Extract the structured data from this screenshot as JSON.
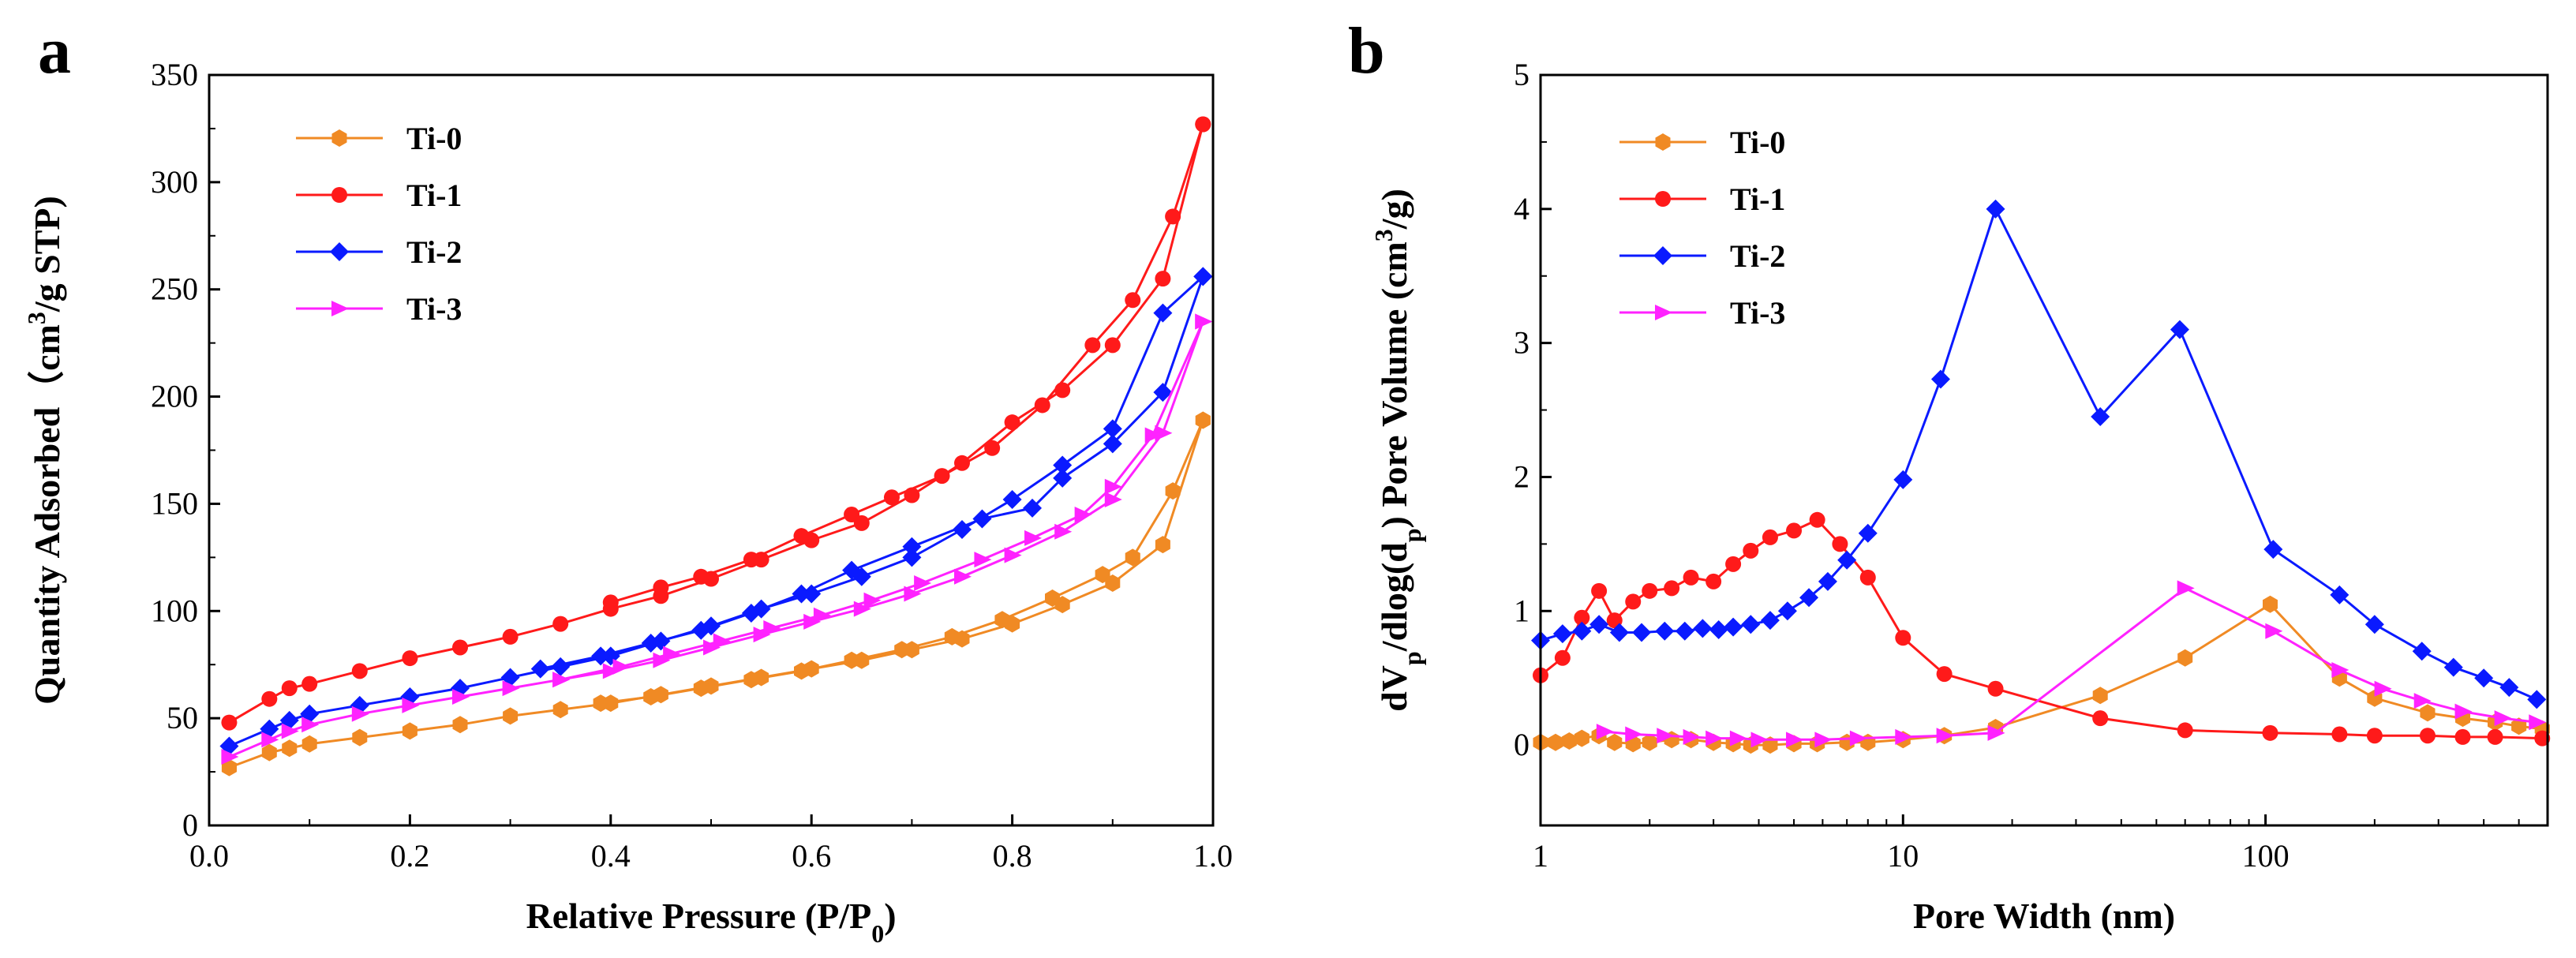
{
  "chart_data": [
    {
      "panel": "a",
      "type": "line",
      "xlabel": "Relative Pressure (P/P",
      "xlabel_sub": "0",
      "xlabel_end": ")",
      "ylabel": "Quantity Adsorbed（cm",
      "ylabel_sup": "3",
      "ylabel_end": "/g STP)",
      "xlim": [
        0.0,
        1.0
      ],
      "ylim": [
        0,
        350
      ],
      "xticks": [
        "0.0",
        "0.2",
        "0.4",
        "0.6",
        "0.8",
        "1.0"
      ],
      "yticks": [
        "0",
        "50",
        "100",
        "150",
        "200",
        "250",
        "300",
        "350"
      ],
      "legend_position": "top-left",
      "series": [
        {
          "name": "Ti-0",
          "color": "#f08a24",
          "marker": "hexagon",
          "adsorption": [
            [
              0.02,
              27
            ],
            [
              0.06,
              34
            ],
            [
              0.08,
              36
            ],
            [
              0.1,
              38
            ],
            [
              0.15,
              41
            ],
            [
              0.2,
              44
            ],
            [
              0.25,
              47
            ],
            [
              0.3,
              51
            ],
            [
              0.35,
              54
            ],
            [
              0.4,
              57
            ],
            [
              0.45,
              61
            ],
            [
              0.5,
              65
            ],
            [
              0.55,
              69
            ],
            [
              0.6,
              73
            ],
            [
              0.65,
              77
            ],
            [
              0.7,
              82
            ],
            [
              0.75,
              87
            ],
            [
              0.8,
              94
            ],
            [
              0.85,
              103
            ],
            [
              0.9,
              113
            ],
            [
              0.95,
              131
            ],
            [
              0.99,
              189
            ]
          ],
          "desorption": [
            [
              0.99,
              189
            ],
            [
              0.96,
              156
            ],
            [
              0.92,
              125
            ],
            [
              0.89,
              117
            ],
            [
              0.84,
              106
            ],
            [
              0.79,
              96
            ],
            [
              0.74,
              88
            ],
            [
              0.69,
              82
            ],
            [
              0.64,
              77
            ],
            [
              0.59,
              72
            ],
            [
              0.54,
              68
            ],
            [
              0.49,
              64
            ],
            [
              0.44,
              60
            ],
            [
              0.39,
              57
            ]
          ]
        },
        {
          "name": "Ti-1",
          "color": "#ff1a1a",
          "marker": "circle",
          "adsorption": [
            [
              0.02,
              48
            ],
            [
              0.06,
              59
            ],
            [
              0.08,
              64
            ],
            [
              0.1,
              66
            ],
            [
              0.15,
              72
            ],
            [
              0.2,
              78
            ],
            [
              0.25,
              83
            ],
            [
              0.3,
              88
            ],
            [
              0.35,
              94
            ],
            [
              0.4,
              101
            ],
            [
              0.45,
              107
            ],
            [
              0.5,
              115
            ],
            [
              0.55,
              124
            ],
            [
              0.6,
              133
            ],
            [
              0.65,
              141
            ],
            [
              0.7,
              154
            ],
            [
              0.75,
              169
            ],
            [
              0.8,
              188
            ],
            [
              0.85,
              203
            ],
            [
              0.9,
              224
            ],
            [
              0.95,
              255
            ],
            [
              0.99,
              327
            ]
          ],
          "desorption": [
            [
              0.99,
              327
            ],
            [
              0.96,
              284
            ],
            [
              0.92,
              245
            ],
            [
              0.88,
              224
            ],
            [
              0.83,
              196
            ],
            [
              0.78,
              176
            ],
            [
              0.73,
              163
            ],
            [
              0.68,
              153
            ],
            [
              0.64,
              145
            ],
            [
              0.59,
              135
            ],
            [
              0.54,
              124
            ],
            [
              0.49,
              116
            ],
            [
              0.45,
              111
            ],
            [
              0.4,
              104
            ]
          ]
        },
        {
          "name": "Ti-2",
          "color": "#0a1aff",
          "marker": "diamond",
          "adsorption": [
            [
              0.02,
              37
            ],
            [
              0.06,
              45
            ],
            [
              0.08,
              49
            ],
            [
              0.1,
              52
            ],
            [
              0.15,
              56
            ],
            [
              0.2,
              60
            ],
            [
              0.25,
              64
            ],
            [
              0.3,
              69
            ],
            [
              0.35,
              74
            ],
            [
              0.4,
              79
            ],
            [
              0.45,
              86
            ],
            [
              0.5,
              93
            ],
            [
              0.55,
              101
            ],
            [
              0.6,
              108
            ],
            [
              0.65,
              116
            ],
            [
              0.7,
              125
            ],
            [
              0.75,
              138
            ],
            [
              0.8,
              152
            ],
            [
              0.85,
              168
            ],
            [
              0.9,
              185
            ],
            [
              0.95,
              239
            ],
            [
              0.99,
              256
            ]
          ],
          "desorption": [
            [
              0.99,
              256
            ],
            [
              0.95,
              202
            ],
            [
              0.9,
              178
            ],
            [
              0.85,
              162
            ],
            [
              0.82,
              148
            ],
            [
              0.77,
              143
            ],
            [
              0.7,
              130
            ],
            [
              0.64,
              119
            ],
            [
              0.59,
              108
            ],
            [
              0.54,
              99
            ],
            [
              0.49,
              91
            ],
            [
              0.44,
              85
            ],
            [
              0.39,
              79
            ],
            [
              0.33,
              73
            ]
          ]
        },
        {
          "name": "Ti-3",
          "color": "#ff22ff",
          "marker": "triangle-right",
          "adsorption": [
            [
              0.02,
              32
            ],
            [
              0.06,
              40
            ],
            [
              0.08,
              44
            ],
            [
              0.1,
              47
            ],
            [
              0.15,
              52
            ],
            [
              0.2,
              56
            ],
            [
              0.25,
              60
            ],
            [
              0.3,
              64
            ],
            [
              0.35,
              68
            ],
            [
              0.4,
              72
            ],
            [
              0.45,
              77
            ],
            [
              0.5,
              83
            ],
            [
              0.55,
              89
            ],
            [
              0.6,
              95
            ],
            [
              0.65,
              101
            ],
            [
              0.7,
              108
            ],
            [
              0.75,
              116
            ],
            [
              0.8,
              126
            ],
            [
              0.85,
              137
            ],
            [
              0.9,
              152
            ],
            [
              0.95,
              183
            ],
            [
              0.99,
              235
            ]
          ],
          "desorption": [
            [
              0.99,
              235
            ],
            [
              0.94,
              182
            ],
            [
              0.9,
              158
            ],
            [
              0.87,
              145
            ],
            [
              0.82,
              134
            ],
            [
              0.77,
              124
            ],
            [
              0.71,
              113
            ],
            [
              0.66,
              105
            ],
            [
              0.61,
              98
            ],
            [
              0.56,
              92
            ],
            [
              0.51,
              86
            ],
            [
              0.46,
              80
            ],
            [
              0.41,
              74
            ],
            [
              0.35,
              68
            ]
          ]
        }
      ]
    },
    {
      "panel": "b",
      "type": "line",
      "xlabel": "Pore Width (nm)",
      "ylabel_parts": [
        "dV",
        "p",
        "/dlog(d",
        "p",
        ") Pore Volume (cm",
        "3",
        "/g)"
      ],
      "xscale": "log",
      "xlim": [
        1,
        600
      ],
      "ylim": [
        -0.6,
        5
      ],
      "xticks": [
        "1",
        "10",
        "100"
      ],
      "yticks": [
        "0",
        "1",
        "2",
        "3",
        "4",
        "5"
      ],
      "legend_position": "top-left",
      "series": [
        {
          "name": "Ti-0",
          "color": "#f08a24",
          "marker": "hexagon",
          "points": [
            [
              1.0,
              0.02
            ],
            [
              1.1,
              0.02
            ],
            [
              1.2,
              0.03
            ],
            [
              1.3,
              0.05
            ],
            [
              1.45,
              0.07
            ],
            [
              1.6,
              0.02
            ],
            [
              1.8,
              0.01
            ],
            [
              2.0,
              0.02
            ],
            [
              2.3,
              0.04
            ],
            [
              2.6,
              0.04
            ],
            [
              3.0,
              0.02
            ],
            [
              3.4,
              0.01
            ],
            [
              3.8,
              0.0
            ],
            [
              4.3,
              0.0
            ],
            [
              5.0,
              0.01
            ],
            [
              5.8,
              0.01
            ],
            [
              7.0,
              0.02
            ],
            [
              8.0,
              0.02
            ],
            [
              10.0,
              0.04
            ],
            [
              13.0,
              0.07
            ],
            [
              18.0,
              0.13
            ],
            [
              35.0,
              0.37
            ],
            [
              60.0,
              0.65
            ],
            [
              103.0,
              1.05
            ],
            [
              160.0,
              0.5
            ],
            [
              200.0,
              0.35
            ],
            [
              280.0,
              0.24
            ],
            [
              350.0,
              0.2
            ],
            [
              430.0,
              0.17
            ],
            [
              500.0,
              0.14
            ],
            [
              580.0,
              0.12
            ]
          ]
        },
        {
          "name": "Ti-1",
          "color": "#ff1a1a",
          "marker": "circle",
          "points": [
            [
              1.0,
              0.52
            ],
            [
              1.15,
              0.65
            ],
            [
              1.3,
              0.95
            ],
            [
              1.45,
              1.15
            ],
            [
              1.6,
              0.93
            ],
            [
              1.8,
              1.07
            ],
            [
              2.0,
              1.15
            ],
            [
              2.3,
              1.17
            ],
            [
              2.6,
              1.25
            ],
            [
              3.0,
              1.22
            ],
            [
              3.4,
              1.35
            ],
            [
              3.8,
              1.45
            ],
            [
              4.3,
              1.55
            ],
            [
              5.0,
              1.6
            ],
            [
              5.8,
              1.68
            ],
            [
              6.7,
              1.5
            ],
            [
              8.0,
              1.25
            ],
            [
              10.0,
              0.8
            ],
            [
              13.0,
              0.53
            ],
            [
              18.0,
              0.42
            ],
            [
              35.0,
              0.2
            ],
            [
              60.0,
              0.11
            ],
            [
              103.0,
              0.09
            ],
            [
              160.0,
              0.08
            ],
            [
              200.0,
              0.07
            ],
            [
              280.0,
              0.07
            ],
            [
              350.0,
              0.06
            ],
            [
              430.0,
              0.06
            ],
            [
              580.0,
              0.05
            ]
          ]
        },
        {
          "name": "Ti-2",
          "color": "#0a1aff",
          "marker": "diamond",
          "points": [
            [
              1.0,
              0.78
            ],
            [
              1.15,
              0.83
            ],
            [
              1.3,
              0.85
            ],
            [
              1.45,
              0.9
            ],
            [
              1.65,
              0.84
            ],
            [
              1.9,
              0.84
            ],
            [
              2.2,
              0.85
            ],
            [
              2.5,
              0.85
            ],
            [
              2.8,
              0.87
            ],
            [
              3.1,
              0.86
            ],
            [
              3.4,
              0.88
            ],
            [
              3.8,
              0.9
            ],
            [
              4.3,
              0.93
            ],
            [
              4.8,
              1.0
            ],
            [
              5.5,
              1.1
            ],
            [
              6.2,
              1.22
            ],
            [
              7.0,
              1.38
            ],
            [
              8.0,
              1.58
            ],
            [
              10.0,
              1.98
            ],
            [
              12.7,
              2.73
            ],
            [
              18.0,
              4.0
            ],
            [
              35.0,
              2.45
            ],
            [
              58.0,
              3.1
            ],
            [
              105.0,
              1.46
            ],
            [
              160.0,
              1.12
            ],
            [
              200.0,
              0.9
            ],
            [
              270.0,
              0.7
            ],
            [
              330.0,
              0.58
            ],
            [
              400.0,
              0.5
            ],
            [
              470.0,
              0.43
            ],
            [
              560.0,
              0.34
            ]
          ]
        },
        {
          "name": "Ti-3",
          "color": "#ff22ff",
          "marker": "triangle-right",
          "points": [
            [
              1.5,
              0.1
            ],
            [
              1.8,
              0.08
            ],
            [
              2.2,
              0.07
            ],
            [
              2.6,
              0.06
            ],
            [
              3.0,
              0.05
            ],
            [
              3.5,
              0.05
            ],
            [
              4.0,
              0.04
            ],
            [
              5.0,
              0.04
            ],
            [
              6.0,
              0.04
            ],
            [
              7.5,
              0.05
            ],
            [
              10.0,
              0.06
            ],
            [
              13.0,
              0.07
            ],
            [
              18.0,
              0.09
            ],
            [
              60.0,
              1.17
            ],
            [
              105.0,
              0.85
            ],
            [
              160.0,
              0.56
            ],
            [
              210.0,
              0.42
            ],
            [
              270.0,
              0.33
            ],
            [
              350.0,
              0.25
            ],
            [
              450.0,
              0.2
            ],
            [
              560.0,
              0.17
            ]
          ]
        }
      ]
    }
  ]
}
